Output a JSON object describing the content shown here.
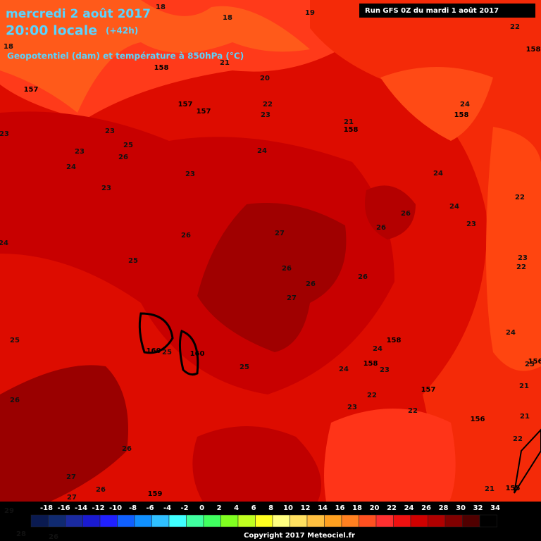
{
  "header": {
    "date": "mercredi 2 août 2017",
    "time": "20:00 locale",
    "lead": "(+42h)",
    "subtitle": "Geopotentiel (dam) et température à 850hPa (°C)",
    "run": "Run GFS 0Z du mardi 1 août 2017"
  },
  "map_labels": [
    "18",
    "18",
    "19",
    "22",
    "158",
    "18",
    "158",
    "21",
    "20",
    "157",
    "157",
    "157",
    "22",
    "23",
    "24",
    "158",
    "21",
    "158",
    "23",
    "23",
    "25",
    "23",
    "26",
    "24",
    "24",
    "23",
    "24",
    "23",
    "22",
    "26",
    "24",
    "26",
    "27",
    "26",
    "23",
    "24",
    "25",
    "23",
    "22",
    "26",
    "26",
    "26",
    "27",
    "24",
    "158",
    "25",
    "24",
    "160",
    "25",
    "160",
    "25",
    "156",
    "158",
    "24",
    "23",
    "25",
    "21",
    "22",
    "157",
    "26",
    "23",
    "22",
    "21",
    "156",
    "22",
    "26",
    "27",
    "26",
    "159",
    "21",
    "155",
    "27",
    "29",
    "28",
    "26",
    "157"
  ],
  "scale": {
    "labels": [
      -18,
      -16,
      -14,
      -12,
      -10,
      -8,
      -6,
      -4,
      -2,
      0,
      2,
      4,
      6,
      8,
      10,
      12,
      14,
      16,
      18,
      20,
      22,
      24,
      26,
      28,
      30,
      32,
      34
    ],
    "colors": [
      "#0a1a50",
      "#102a70",
      "#1a2aa0",
      "#1a1ad0",
      "#2020ff",
      "#1060ff",
      "#1090ff",
      "#30c0ff",
      "#40ffff",
      "#40ffa0",
      "#40ff60",
      "#80ff20",
      "#c0ff20",
      "#ffff20",
      "#ffff80",
      "#ffe060",
      "#ffc040",
      "#ffa020",
      "#ff8020",
      "#ff5020",
      "#ff3030",
      "#f01010",
      "#d00000",
      "#b00000",
      "#800000",
      "#500000",
      "#000000"
    ]
  },
  "footer": {
    "copyright": "Copyright 2017 Meteociel.fr"
  }
}
